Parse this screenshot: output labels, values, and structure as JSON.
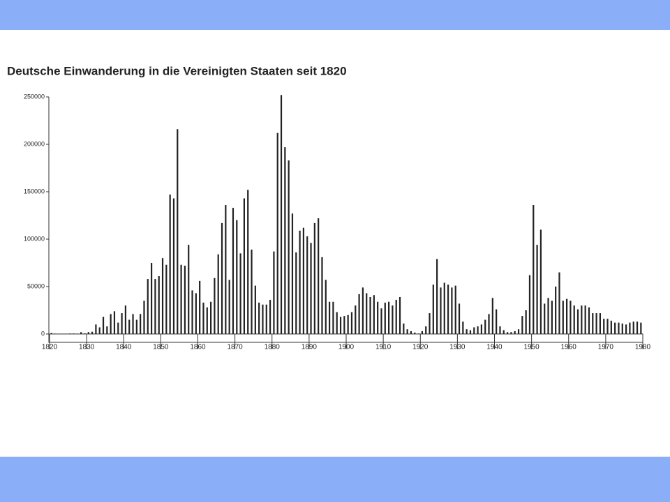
{
  "chart_data": {
    "type": "bar",
    "title": "Deutsche Einwanderung in die Vereinigten Staaten seit 1820",
    "x": [
      1820,
      1821,
      1822,
      1823,
      1824,
      1825,
      1826,
      1827,
      1828,
      1829,
      1830,
      1831,
      1832,
      1833,
      1834,
      1835,
      1836,
      1837,
      1838,
      1839,
      1840,
      1841,
      1842,
      1843,
      1844,
      1845,
      1846,
      1847,
      1848,
      1849,
      1850,
      1851,
      1852,
      1853,
      1854,
      1855,
      1856,
      1857,
      1858,
      1859,
      1860,
      1861,
      1862,
      1863,
      1864,
      1865,
      1866,
      1867,
      1868,
      1869,
      1870,
      1871,
      1872,
      1873,
      1874,
      1875,
      1876,
      1877,
      1878,
      1879,
      1880,
      1881,
      1882,
      1883,
      1884,
      1885,
      1886,
      1887,
      1888,
      1889,
      1890,
      1891,
      1892,
      1893,
      1894,
      1895,
      1896,
      1897,
      1898,
      1899,
      1900,
      1901,
      1902,
      1903,
      1904,
      1905,
      1906,
      1907,
      1908,
      1909,
      1910,
      1911,
      1912,
      1913,
      1914,
      1915,
      1916,
      1917,
      1918,
      1919,
      1920,
      1921,
      1922,
      1923,
      1924,
      1925,
      1926,
      1927,
      1928,
      1929,
      1930,
      1931,
      1932,
      1933,
      1934,
      1935,
      1936,
      1937,
      1938,
      1939,
      1940,
      1941,
      1942,
      1943,
      1944,
      1945,
      1946,
      1947,
      1948,
      1949,
      1950,
      1951,
      1952,
      1953,
      1954,
      1955,
      1956,
      1957,
      1958,
      1959,
      1960,
      1961,
      1962,
      1963,
      1964,
      1965,
      1966,
      1967,
      1968,
      1969,
      1970,
      1971,
      1972,
      1973,
      1974,
      1975,
      1976,
      1977,
      1978,
      1979
    ],
    "values": [
      1000,
      400,
      200,
      200,
      300,
      500,
      500,
      400,
      1900,
      600,
      2000,
      2400,
      10000,
      7000,
      18000,
      8000,
      21000,
      24000,
      12000,
      22000,
      30000,
      15000,
      21000,
      15000,
      21000,
      35000,
      58000,
      75000,
      58000,
      61000,
      80000,
      73000,
      147000,
      143000,
      216000,
      73000,
      72000,
      94000,
      46000,
      43000,
      56000,
      33000,
      28000,
      34000,
      59000,
      84000,
      117000,
      136000,
      57000,
      133000,
      120000,
      85000,
      143000,
      152000,
      89000,
      51000,
      33000,
      31000,
      31000,
      36000,
      87000,
      212000,
      252000,
      197000,
      183000,
      127000,
      86000,
      109000,
      112000,
      103000,
      96000,
      117000,
      122000,
      81000,
      57000,
      34000,
      34000,
      23000,
      18000,
      19000,
      20000,
      23000,
      30000,
      42000,
      49000,
      43000,
      39000,
      41000,
      34000,
      27000,
      33000,
      34000,
      30000,
      36000,
      39000,
      11000,
      5000,
      3000,
      1500,
      500,
      3000,
      8000,
      22000,
      52000,
      79000,
      49000,
      54000,
      52000,
      49000,
      51000,
      32000,
      13000,
      5000,
      4000,
      7000,
      8000,
      10000,
      15000,
      21000,
      38000,
      26000,
      8000,
      4000,
      2000,
      2000,
      3000,
      5000,
      19000,
      25000,
      62000,
      136000,
      94000,
      110000,
      32000,
      38000,
      35000,
      50000,
      65000,
      35000,
      37000,
      35000,
      30000,
      26000,
      30000,
      30000,
      28000,
      22000,
      22000,
      22000,
      16000,
      16000,
      14000,
      12000,
      12000,
      11000,
      10000,
      12000,
      13000,
      13000,
      12000
    ],
    "color": "#222222",
    "xlim": [
      1820,
      1980
    ],
    "xticks": [
      1820,
      1830,
      1840,
      1850,
      1860,
      1870,
      1880,
      1890,
      1900,
      1910,
      1920,
      1930,
      1940,
      1950,
      1960,
      1970,
      1980
    ],
    "ylim": [
      0,
      250000
    ],
    "yticks": [
      0,
      50000,
      100000,
      150000,
      200000,
      250000
    ],
    "grid": false
  }
}
